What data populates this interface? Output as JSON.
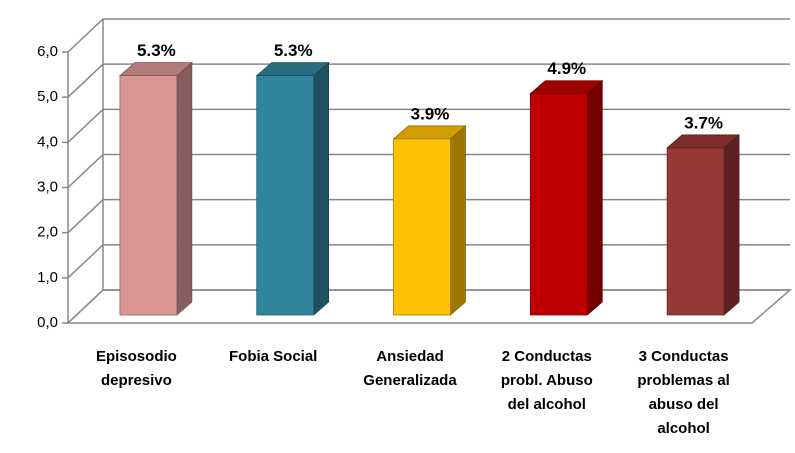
{
  "chart_data": {
    "type": "bar3d",
    "categories": [
      "Episosodio depresivo",
      "Fobia Social",
      "Ansiedad Generalizada",
      "2 Conductas probl. Abuso del alcohol",
      "3 Conductas problemas al abuso del alcohol"
    ],
    "values": [
      5.3,
      5.3,
      3.9,
      4.9,
      3.7
    ],
    "value_labels": [
      "5.3%",
      "5.3%",
      "3.9%",
      "4.9%",
      "3.7%"
    ],
    "colors": [
      "#d99594",
      "#31859c",
      "#ffc000",
      "#c00000",
      "#953735"
    ],
    "ylim": [
      0,
      6
    ],
    "yticks": [
      {
        "value": 0,
        "label": "0,0"
      },
      {
        "value": 1,
        "label": "1,0"
      },
      {
        "value": 2,
        "label": "2,0"
      },
      {
        "value": 3,
        "label": "3,0"
      },
      {
        "value": 4,
        "label": "4,0"
      },
      {
        "value": 5,
        "label": "5,0"
      },
      {
        "value": 6,
        "label": "6,0"
      }
    ],
    "grid": true
  }
}
